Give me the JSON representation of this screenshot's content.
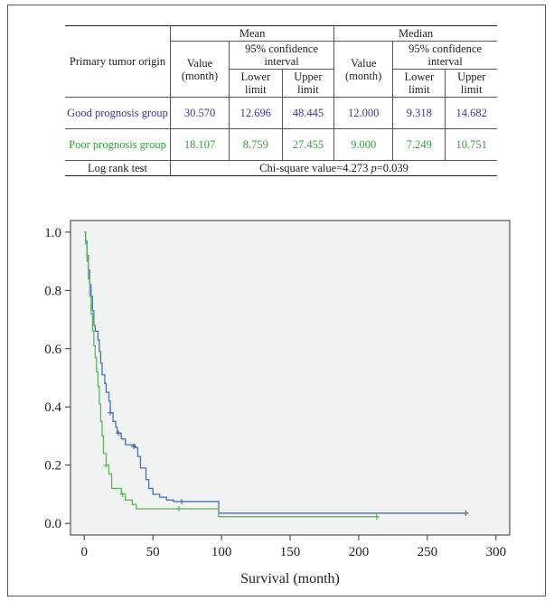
{
  "table": {
    "header": {
      "origin": "Primary tumor origin",
      "mean": "Mean",
      "median": "Median",
      "value": "Value (month)",
      "ci": "95% confidence interval",
      "lower": "Lower limit",
      "upper": "Upper limit"
    },
    "rows": [
      {
        "label": "Good prognosis group",
        "mean_value": "30.570",
        "mean_lower": "12.696",
        "mean_upper": "48.445",
        "median_value": "12.000",
        "median_lower": "9.318",
        "median_upper": "14.682"
      },
      {
        "label": "Poor prognosis group",
        "mean_value": "18.107",
        "mean_lower": "8.759",
        "mean_upper": "27.455",
        "median_value": "9.000",
        "median_lower": "7.249",
        "median_upper": "10.751"
      }
    ],
    "logrank": {
      "label": "Log rank test",
      "chi": "Chi-square value=4.273",
      "p_symbol": "p",
      "p_value": "=0.039"
    }
  },
  "chart_data": {
    "type": "line",
    "xlabel": "Survival (month)",
    "ylabel": "",
    "xlim": [
      -10,
      310
    ],
    "ylim": [
      -0.04,
      1.04
    ],
    "xticks": [
      0,
      50,
      100,
      150,
      200,
      250,
      300
    ],
    "yticks": [
      0.0,
      0.2,
      0.4,
      0.6,
      0.8,
      1.0
    ],
    "series": [
      {
        "color": "#4a6fb5",
        "steps": [
          [
            0,
            1.0
          ],
          [
            1,
            0.97
          ],
          [
            2,
            0.92
          ],
          [
            3,
            0.87
          ],
          [
            4,
            0.82
          ],
          [
            5,
            0.78
          ],
          [
            6,
            0.73
          ],
          [
            7,
            0.68
          ],
          [
            8,
            0.66
          ],
          [
            10,
            0.63
          ],
          [
            11,
            0.59
          ],
          [
            12,
            0.55
          ],
          [
            13,
            0.51
          ],
          [
            15,
            0.48
          ],
          [
            16,
            0.45
          ],
          [
            18,
            0.42
          ],
          [
            19,
            0.38
          ],
          [
            21,
            0.35
          ],
          [
            23,
            0.33
          ],
          [
            24,
            0.31
          ],
          [
            27,
            0.29
          ],
          [
            30,
            0.27
          ],
          [
            37,
            0.26
          ],
          [
            39,
            0.23
          ],
          [
            41,
            0.19
          ],
          [
            45,
            0.15
          ],
          [
            47,
            0.12
          ],
          [
            50,
            0.1
          ],
          [
            55,
            0.09
          ],
          [
            60,
            0.08
          ],
          [
            65,
            0.075
          ],
          [
            98,
            0.035
          ],
          [
            280,
            0.035
          ]
        ],
        "censors": [
          [
            19,
            0.38
          ],
          [
            25,
            0.31
          ],
          [
            36,
            0.265
          ],
          [
            71,
            0.075
          ],
          [
            278,
            0.035
          ]
        ]
      },
      {
        "color": "#5cb85c",
        "steps": [
          [
            0,
            1.0
          ],
          [
            1,
            0.96
          ],
          [
            2,
            0.9
          ],
          [
            3,
            0.84
          ],
          [
            4,
            0.78
          ],
          [
            5,
            0.72
          ],
          [
            6,
            0.66
          ],
          [
            7,
            0.61
          ],
          [
            8,
            0.57
          ],
          [
            9,
            0.52
          ],
          [
            10,
            0.47
          ],
          [
            11,
            0.41
          ],
          [
            12,
            0.35
          ],
          [
            13,
            0.3
          ],
          [
            14,
            0.24
          ],
          [
            16,
            0.2
          ],
          [
            18,
            0.17
          ],
          [
            20,
            0.12
          ],
          [
            27,
            0.1
          ],
          [
            30,
            0.08
          ],
          [
            35,
            0.065
          ],
          [
            38,
            0.05
          ],
          [
            98,
            0.023
          ],
          [
            215,
            0.023
          ]
        ],
        "censors": [
          [
            16,
            0.2
          ],
          [
            28,
            0.1
          ],
          [
            69,
            0.05
          ],
          [
            213,
            0.023
          ]
        ]
      }
    ]
  }
}
